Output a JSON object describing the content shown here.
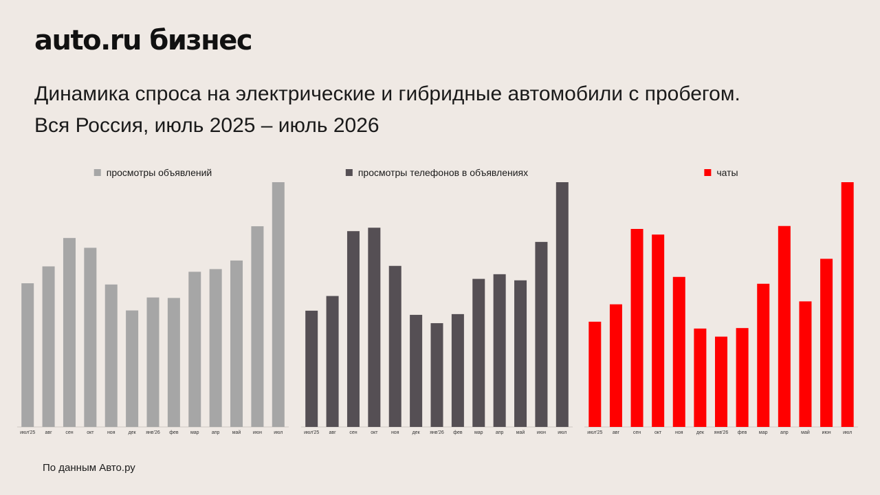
{
  "header": {
    "logo": "auto.ru бизнес",
    "title_line1": "Динамика спроса на электрические и гибридные автомобили с пробегом.",
    "title_line2": "Вся Россия, июль 2025 – июль 2026"
  },
  "footer": {
    "source": "По данным Авто.ру"
  },
  "chart_data": [
    {
      "type": "bar",
      "legend": "top-center",
      "grid": false,
      "categories": [
        "июл'25",
        "авг",
        "сен",
        "окт",
        "ноя",
        "дек",
        "янв'26",
        "фев",
        "мар",
        "апр",
        "май",
        "июн",
        "июл"
      ],
      "series": [
        {
          "name": "просмотры объявлений",
          "color": "#a6a6a6",
          "values": [
            58.7,
            65.6,
            77.2,
            73.2,
            58.2,
            47.6,
            52.9,
            52.7,
            63.4,
            64.5,
            68.0,
            82.0,
            100
          ]
        }
      ],
      "ylim": [
        0,
        100
      ]
    },
    {
      "type": "bar",
      "legend": "top-center",
      "grid": false,
      "categories": [
        "июл'25",
        "авг",
        "сен",
        "окт",
        "ноя",
        "дек",
        "янв'26",
        "фев",
        "мар",
        "апр",
        "май",
        "июн",
        "июл"
      ],
      "series": [
        {
          "name": "просмотры телефонов в объявлениях",
          "color": "#554f54",
          "values": [
            47.5,
            53.5,
            80.0,
            81.4,
            65.8,
            45.8,
            42.4,
            46.1,
            60.5,
            62.4,
            59.9,
            75.6,
            100
          ]
        }
      ],
      "ylim": [
        0,
        100
      ]
    },
    {
      "type": "bar",
      "legend": "top-center",
      "grid": false,
      "categories": [
        "июл'25",
        "авг",
        "сен",
        "окт",
        "ноя",
        "дек",
        "янв'26",
        "фев",
        "мар",
        "апр",
        "май",
        "июн",
        "июл"
      ],
      "series": [
        {
          "name": "чаты",
          "color": "#ff0000",
          "values": [
            43.0,
            50.1,
            80.9,
            78.6,
            61.3,
            40.2,
            36.9,
            40.4,
            58.5,
            82.1,
            51.3,
            68.7,
            100
          ]
        }
      ],
      "ylim": [
        0,
        100
      ]
    }
  ]
}
